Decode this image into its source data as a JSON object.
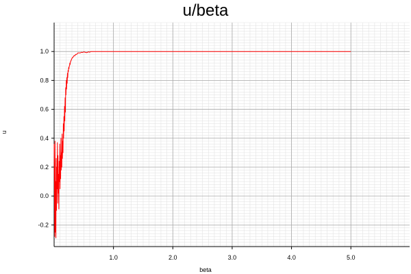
{
  "chart_data": {
    "type": "line",
    "title": "u/beta",
    "xlabel": "beta",
    "ylabel": "u",
    "xlim": [
      0.0,
      5.99
    ],
    "ylim": [
      -0.35,
      1.2
    ],
    "xticks": [
      1.0,
      2.0,
      3.0,
      4.0,
      5.0
    ],
    "yticks": [
      -0.2,
      0.0,
      0.2,
      0.4,
      0.6,
      0.8,
      1.0
    ],
    "xtick_labels": [
      "1.0",
      "2.0",
      "3.0",
      "4.0",
      "5.0"
    ],
    "ytick_labels": [
      "-0.2",
      "0.0",
      "0.2",
      "0.4",
      "0.6",
      "0.8",
      "1.0"
    ],
    "grid": true,
    "series": [
      {
        "color": "#ff0000",
        "x": [
          0.0,
          0.01,
          0.015,
          0.02,
          0.025,
          0.03,
          0.035,
          0.04,
          0.045,
          0.05,
          0.055,
          0.06,
          0.065,
          0.07,
          0.075,
          0.08,
          0.085,
          0.09,
          0.095,
          0.1,
          0.105,
          0.11,
          0.115,
          0.12,
          0.125,
          0.13,
          0.135,
          0.14,
          0.145,
          0.15,
          0.155,
          0.16,
          0.165,
          0.17,
          0.175,
          0.18,
          0.185,
          0.19,
          0.195,
          0.2,
          0.205,
          0.21,
          0.215,
          0.22,
          0.225,
          0.23,
          0.235,
          0.24,
          0.245,
          0.25,
          0.255,
          0.26,
          0.265,
          0.27,
          0.275,
          0.28,
          0.285,
          0.29,
          0.295,
          0.3,
          0.31,
          0.32,
          0.33,
          0.34,
          0.35,
          0.36,
          0.37,
          0.38,
          0.39,
          0.4,
          0.42,
          0.44,
          0.46,
          0.48,
          0.5,
          0.52,
          0.55,
          0.58,
          0.6,
          0.62,
          0.65,
          0.7,
          5.0
        ],
        "y": [
          0.36,
          -0.28,
          0.38,
          -0.25,
          0.1,
          -0.29,
          0.26,
          -0.1,
          0.2,
          0.05,
          0.37,
          -0.05,
          0.28,
          0.02,
          0.15,
          -0.09,
          0.24,
          0.1,
          0.36,
          0.05,
          0.28,
          0.12,
          0.4,
          0.18,
          0.3,
          0.2,
          0.43,
          0.26,
          0.38,
          0.3,
          0.5,
          0.4,
          0.55,
          0.45,
          0.62,
          0.52,
          0.68,
          0.58,
          0.75,
          0.7,
          0.8,
          0.74,
          0.82,
          0.78,
          0.85,
          0.82,
          0.87,
          0.86,
          0.89,
          0.88,
          0.9,
          0.9,
          0.92,
          0.91,
          0.93,
          0.93,
          0.94,
          0.94,
          0.95,
          0.95,
          0.96,
          0.96,
          0.97,
          0.97,
          0.97,
          0.98,
          0.98,
          0.98,
          0.985,
          0.99,
          0.99,
          0.99,
          0.995,
          0.993,
          0.998,
          0.995,
          0.992,
          0.998,
          0.995,
          1.0,
          1.0,
          1.0,
          1.0
        ]
      }
    ]
  }
}
